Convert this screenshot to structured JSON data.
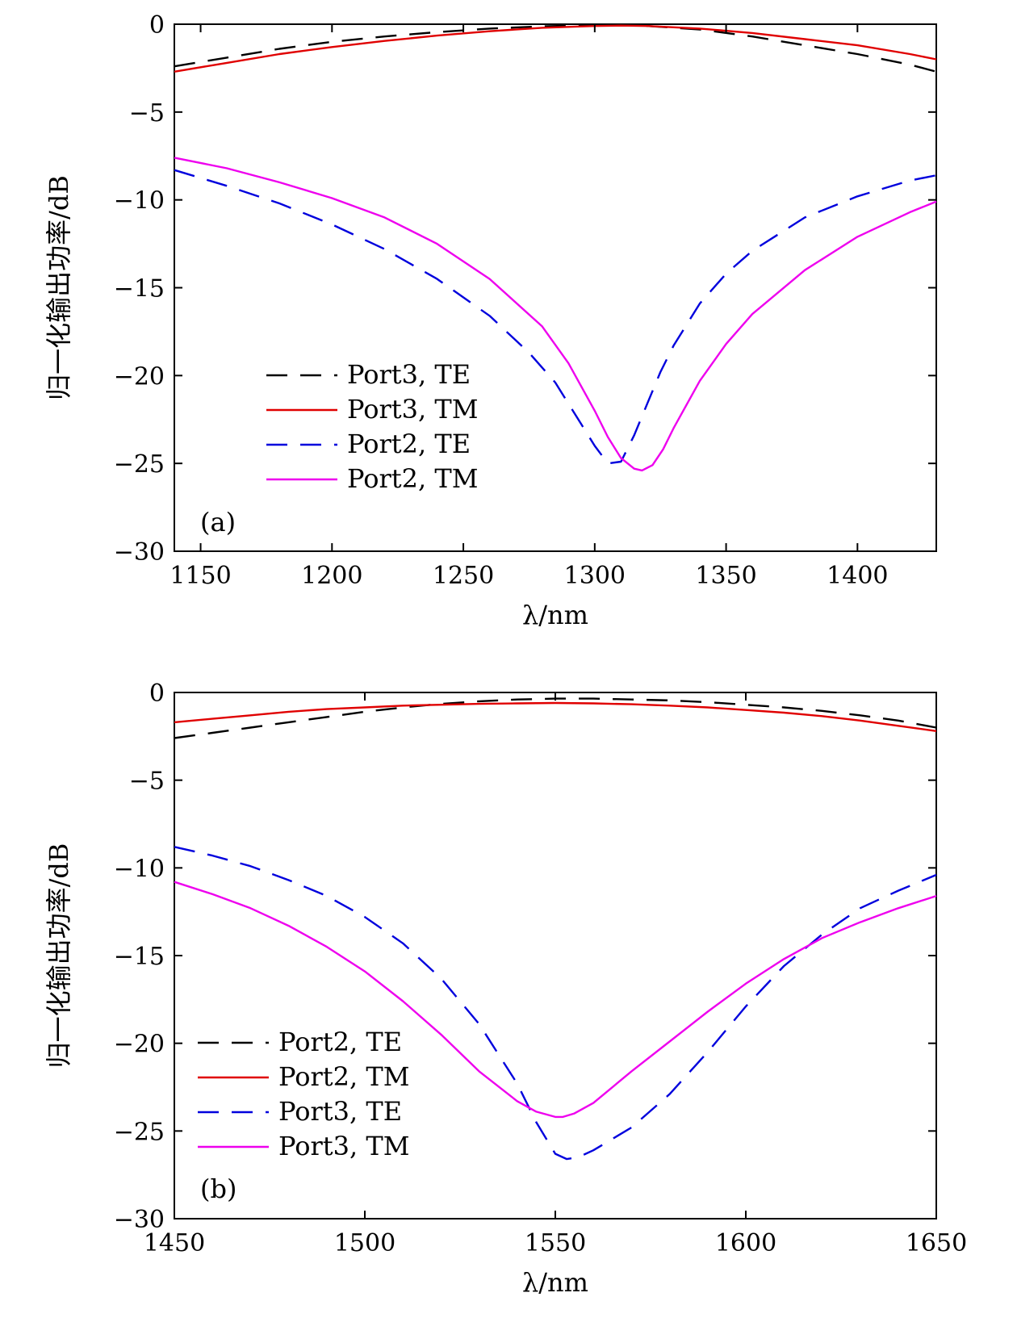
{
  "chart_data": [
    {
      "type": "line",
      "panel_label": "(a)",
      "xlabel": "λ/nm",
      "ylabel": "归一化输出功率/dB",
      "xlim": [
        1140,
        1430
      ],
      "ylim": [
        -30,
        0
      ],
      "xticks": [
        1150,
        1200,
        1250,
        1300,
        1350,
        1400
      ],
      "yticks": [
        0,
        -5,
        -10,
        -15,
        -20,
        -25,
        -30
      ],
      "ytick_labels": [
        "0",
        "−5",
        "−10",
        "−15",
        "−20",
        "−25",
        "−30"
      ],
      "legend_position": "lower-left",
      "series": [
        {
          "name": "Port3, TE",
          "color": "#000000",
          "dash": "dashed",
          "x": [
            1140,
            1160,
            1180,
            1200,
            1220,
            1240,
            1260,
            1280,
            1300,
            1310,
            1320,
            1340,
            1360,
            1380,
            1400,
            1420,
            1430
          ],
          "y": [
            -2.4,
            -1.9,
            -1.4,
            -1.0,
            -0.7,
            -0.45,
            -0.25,
            -0.12,
            -0.05,
            -0.05,
            -0.1,
            -0.3,
            -0.7,
            -1.2,
            -1.7,
            -2.3,
            -2.7
          ]
        },
        {
          "name": "Port3, TM",
          "color": "#e00000",
          "dash": "solid",
          "x": [
            1140,
            1160,
            1180,
            1200,
            1220,
            1240,
            1260,
            1280,
            1300,
            1310,
            1320,
            1340,
            1360,
            1380,
            1400,
            1420,
            1430
          ],
          "y": [
            -2.7,
            -2.2,
            -1.7,
            -1.3,
            -0.95,
            -0.65,
            -0.4,
            -0.2,
            -0.1,
            -0.08,
            -0.1,
            -0.25,
            -0.5,
            -0.85,
            -1.2,
            -1.7,
            -2.0
          ]
        },
        {
          "name": "Port2, TE",
          "color": "#0000dd",
          "dash": "dashed",
          "x": [
            1140,
            1160,
            1180,
            1200,
            1220,
            1240,
            1260,
            1275,
            1285,
            1295,
            1300,
            1305,
            1310,
            1315,
            1320,
            1325,
            1330,
            1340,
            1350,
            1360,
            1380,
            1400,
            1420,
            1430
          ],
          "y": [
            -8.3,
            -9.2,
            -10.2,
            -11.4,
            -12.8,
            -14.5,
            -16.6,
            -18.7,
            -20.4,
            -22.8,
            -24.0,
            -25.0,
            -24.9,
            -23.4,
            -21.6,
            -19.8,
            -18.3,
            -15.9,
            -14.2,
            -12.9,
            -11.0,
            -9.8,
            -8.9,
            -8.6
          ]
        },
        {
          "name": "Port2, TM",
          "color": "#ee00ee",
          "dash": "solid",
          "x": [
            1140,
            1160,
            1180,
            1200,
            1220,
            1240,
            1260,
            1280,
            1290,
            1300,
            1305,
            1310,
            1315,
            1318,
            1322,
            1326,
            1330,
            1340,
            1350,
            1360,
            1380,
            1400,
            1420,
            1430
          ],
          "y": [
            -7.6,
            -8.2,
            -9.0,
            -9.9,
            -11.0,
            -12.5,
            -14.5,
            -17.2,
            -19.3,
            -22.0,
            -23.5,
            -24.7,
            -25.3,
            -25.4,
            -25.1,
            -24.2,
            -23.0,
            -20.3,
            -18.2,
            -16.5,
            -14.0,
            -12.1,
            -10.7,
            -10.1
          ]
        }
      ]
    },
    {
      "type": "line",
      "panel_label": "(b)",
      "xlabel": "λ/nm",
      "ylabel": "归一化输出功率/dB",
      "xlim": [
        1450,
        1650
      ],
      "ylim": [
        -30,
        0
      ],
      "xticks": [
        1450,
        1500,
        1550,
        1600,
        1650
      ],
      "yticks": [
        0,
        -5,
        -10,
        -15,
        -20,
        -25,
        -30
      ],
      "ytick_labels": [
        "0",
        "−5",
        "−10",
        "−15",
        "−20",
        "−25",
        "−30"
      ],
      "legend_position": "lower-left",
      "series": [
        {
          "name": "Port2, TE",
          "color": "#000000",
          "dash": "dashed",
          "x": [
            1450,
            1460,
            1470,
            1480,
            1490,
            1500,
            1510,
            1520,
            1530,
            1540,
            1550,
            1560,
            1570,
            1580,
            1590,
            1600,
            1610,
            1620,
            1630,
            1640,
            1650
          ],
          "y": [
            -2.6,
            -2.3,
            -2.0,
            -1.7,
            -1.4,
            -1.1,
            -0.85,
            -0.65,
            -0.5,
            -0.4,
            -0.35,
            -0.35,
            -0.4,
            -0.45,
            -0.55,
            -0.7,
            -0.85,
            -1.05,
            -1.3,
            -1.6,
            -2.0
          ]
        },
        {
          "name": "Port2, TM",
          "color": "#e00000",
          "dash": "solid",
          "x": [
            1450,
            1460,
            1470,
            1480,
            1490,
            1500,
            1510,
            1520,
            1530,
            1540,
            1550,
            1560,
            1570,
            1580,
            1590,
            1600,
            1610,
            1620,
            1630,
            1640,
            1650
          ],
          "y": [
            -1.7,
            -1.5,
            -1.3,
            -1.1,
            -0.95,
            -0.85,
            -0.75,
            -0.7,
            -0.65,
            -0.62,
            -0.6,
            -0.62,
            -0.67,
            -0.75,
            -0.85,
            -1.0,
            -1.15,
            -1.35,
            -1.6,
            -1.9,
            -2.2
          ]
        },
        {
          "name": "Port3, TE",
          "color": "#0000dd",
          "dash": "dashed",
          "x": [
            1450,
            1460,
            1470,
            1480,
            1490,
            1500,
            1510,
            1520,
            1530,
            1540,
            1545,
            1550,
            1553,
            1556,
            1560,
            1570,
            1580,
            1590,
            1600,
            1610,
            1620,
            1630,
            1640,
            1650
          ],
          "y": [
            -8.8,
            -9.3,
            -9.9,
            -10.7,
            -11.6,
            -12.8,
            -14.3,
            -16.3,
            -18.9,
            -22.3,
            -24.5,
            -26.3,
            -26.6,
            -26.5,
            -26.1,
            -24.8,
            -22.9,
            -20.5,
            -17.9,
            -15.6,
            -13.8,
            -12.3,
            -11.3,
            -10.4
          ]
        },
        {
          "name": "Port3, TM",
          "color": "#ee00ee",
          "dash": "solid",
          "x": [
            1450,
            1460,
            1470,
            1480,
            1490,
            1500,
            1510,
            1520,
            1530,
            1540,
            1545,
            1550,
            1552,
            1555,
            1560,
            1570,
            1580,
            1590,
            1600,
            1610,
            1620,
            1630,
            1640,
            1650
          ],
          "y": [
            -10.8,
            -11.5,
            -12.3,
            -13.3,
            -14.5,
            -15.9,
            -17.6,
            -19.5,
            -21.6,
            -23.3,
            -23.9,
            -24.2,
            -24.2,
            -24.0,
            -23.4,
            -21.6,
            -19.9,
            -18.2,
            -16.6,
            -15.2,
            -14.0,
            -13.1,
            -12.3,
            -11.6
          ]
        }
      ]
    }
  ]
}
